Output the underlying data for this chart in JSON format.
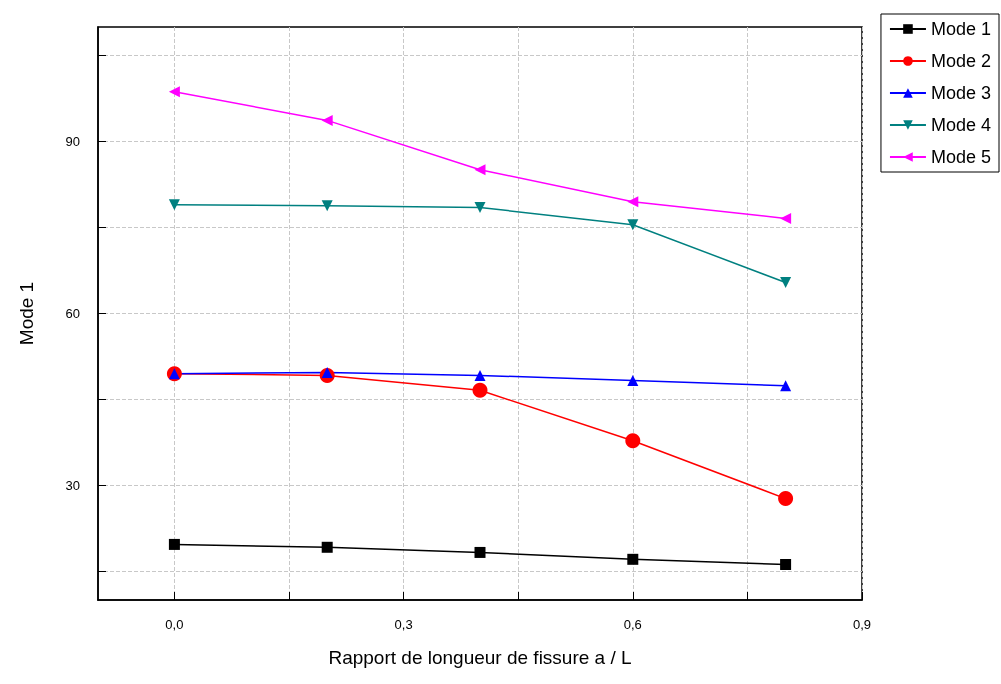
{
  "chart_data": {
    "type": "line",
    "xlabel": "Rapport de longueur de fissure a / L",
    "ylabel": "Mode 1",
    "x": [
      0,
      0.2,
      0.4,
      0.6,
      0.8
    ],
    "xlim": [
      -0.1,
      0.9
    ],
    "xticks": [
      {
        "value": 0,
        "label": "0,0"
      },
      {
        "value": 0.15,
        "label": null
      },
      {
        "value": 0.3,
        "label": "0,3"
      },
      {
        "value": 0.45,
        "label": null
      },
      {
        "value": 0.6,
        "label": "0,6"
      },
      {
        "value": 0.75,
        "label": null
      },
      {
        "value": 0.9,
        "label": "0,9"
      }
    ],
    "ylim": [
      10,
      110
    ],
    "yticks": [
      {
        "value": 15,
        "label": null
      },
      30,
      {
        "value": 45,
        "label": null
      },
      60,
      {
        "value": 75,
        "label": null
      },
      90,
      {
        "value": 105,
        "label": null
      }
    ],
    "grid": true,
    "legend": "top right",
    "line_style": "solid",
    "series": [
      {
        "name": "Mode 1",
        "color": "#000000",
        "marker": "square",
        "values": [
          19.7,
          19.2,
          18.3,
          17.1,
          16.2
        ]
      },
      {
        "name": "Mode 2",
        "color": "#ff0000",
        "marker": "circle",
        "values": [
          49.5,
          49.2,
          46.6,
          37.8,
          27.7
        ]
      },
      {
        "name": "Mode 3",
        "color": "#0000ff",
        "marker": "triangle",
        "values": [
          49.5,
          49.7,
          49.2,
          48.3,
          47.4
        ]
      },
      {
        "name": "Mode 4",
        "color": "#008080",
        "marker": "triangle-down",
        "values": [
          79.0,
          78.8,
          78.5,
          75.5,
          65.4
        ]
      },
      {
        "name": "Mode 5",
        "color": "#ff00ff",
        "marker": "triangle-left",
        "values": [
          98.7,
          93.7,
          85.1,
          79.5,
          76.6
        ]
      }
    ]
  }
}
